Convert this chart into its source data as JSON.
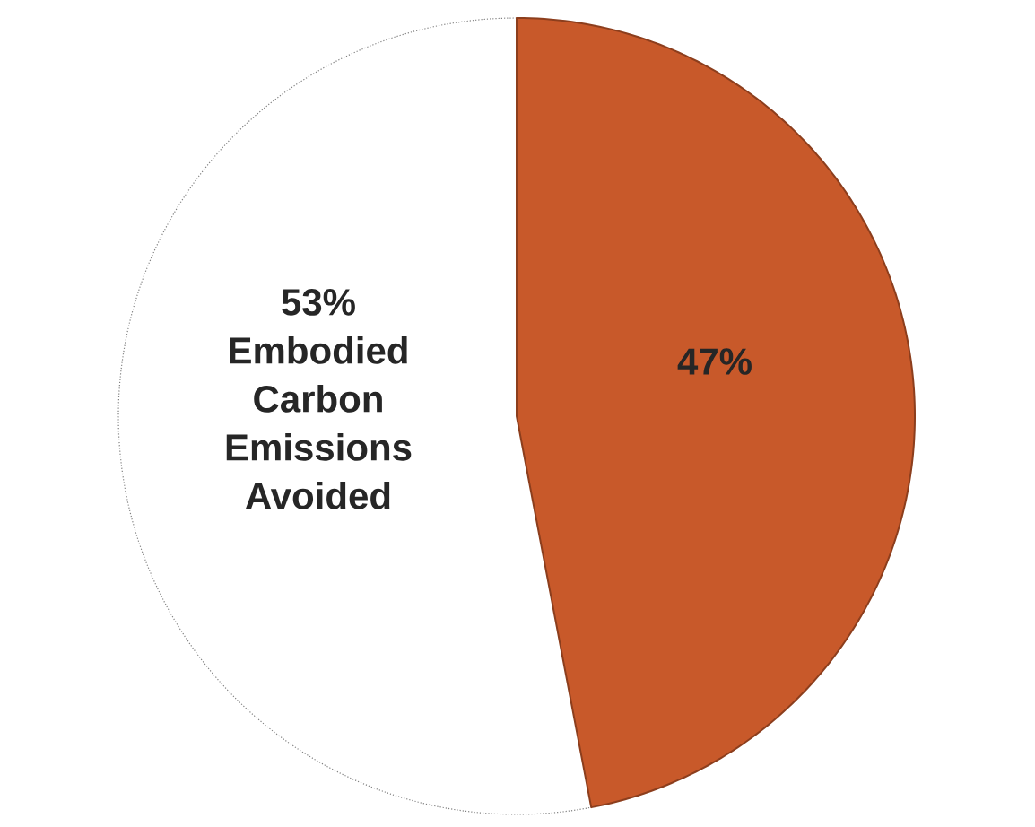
{
  "chart_data": {
    "type": "pie",
    "categories": [
      "Embodied Carbon Emissions Avoided",
      null
    ],
    "values": [
      53,
      47
    ],
    "colors": [
      "#ffffff",
      "#c8592a"
    ],
    "value_labels": [
      "53%",
      "47%"
    ]
  }
}
